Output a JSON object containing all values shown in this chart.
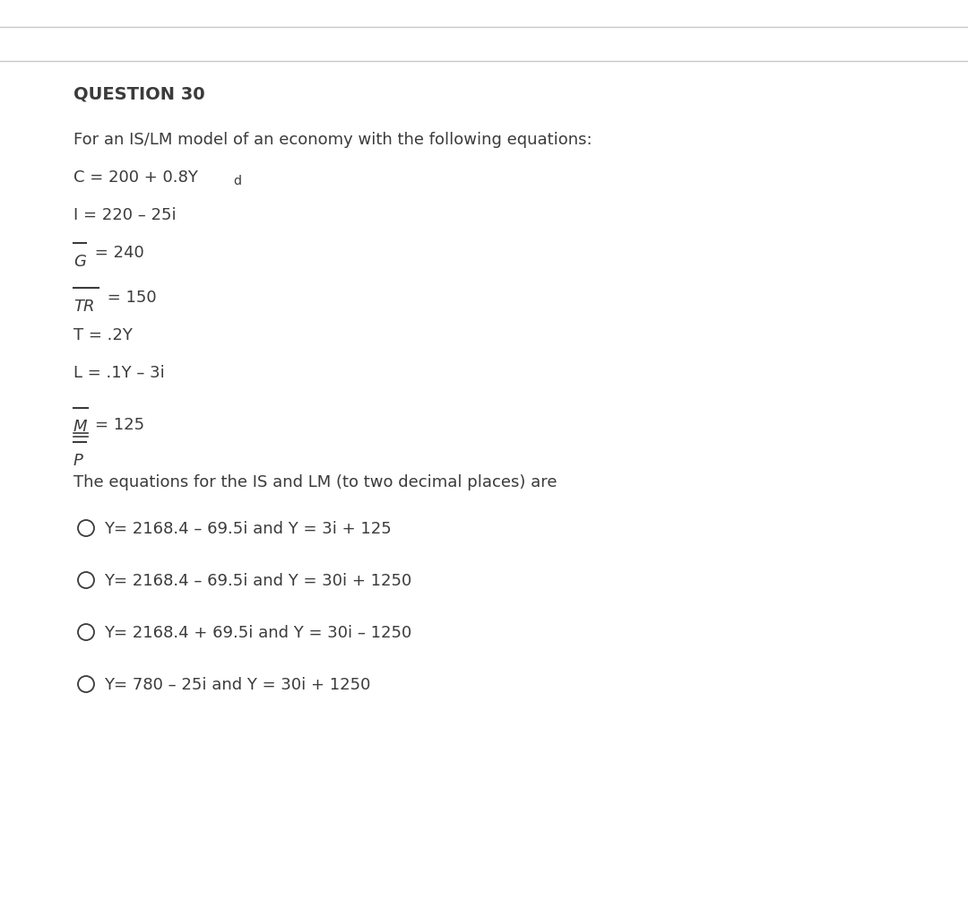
{
  "title": "QUESTION 30",
  "intro": "For an IS/LM model of an economy with the following equations:",
  "conclusion": "The equations for the IS and LM (to two decimal places) are",
  "options": [
    "Y= 2168.4 – 69.5i and Y = 3i + 125",
    "Y= 2168.4 – 69.5i and Y = 30i + 1250",
    "Y= 2168.4 + 69.5i and Y = 30i – 1250",
    "Y= 780 – 25i and Y = 30i + 1250"
  ],
  "bg_color": "#ffffff",
  "text_color": "#3b3b3b",
  "line_color": "#c8c8c8",
  "font_size_title": 14,
  "font_size_body": 13,
  "fig_width": 10.8,
  "fig_height": 10.06,
  "dpi": 100
}
